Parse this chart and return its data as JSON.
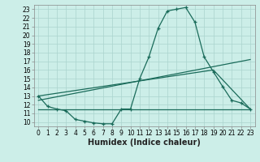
{
  "xlabel": "Humidex (Indice chaleur)",
  "background_color": "#cceee8",
  "grid_color": "#aad4ce",
  "line_color": "#1a6b5a",
  "line1_x": [
    0,
    1,
    2,
    3,
    4,
    5,
    6,
    7,
    8,
    9,
    10,
    11,
    12,
    13,
    14,
    15,
    16,
    17,
    18,
    19,
    20,
    21,
    22,
    23
  ],
  "line1_y": [
    13.0,
    11.8,
    11.5,
    11.3,
    10.3,
    10.1,
    9.9,
    9.8,
    9.8,
    11.5,
    11.5,
    15.0,
    17.5,
    20.8,
    22.8,
    23.0,
    23.2,
    21.5,
    17.5,
    15.8,
    14.1,
    12.5,
    12.2,
    11.5
  ],
  "line2_x": [
    0,
    1,
    2,
    3,
    4,
    5,
    6,
    7,
    8,
    9,
    10,
    11,
    12,
    13,
    14,
    15,
    16,
    17,
    18,
    19,
    20,
    21,
    22,
    23
  ],
  "line2_y": [
    11.5,
    11.5,
    11.5,
    11.5,
    11.5,
    11.5,
    11.5,
    11.5,
    11.5,
    11.5,
    11.5,
    11.5,
    11.5,
    11.5,
    11.5,
    11.5,
    11.5,
    11.5,
    11.5,
    11.5,
    11.5,
    11.5,
    11.5,
    11.5
  ],
  "line3_x": [
    0,
    23
  ],
  "line3_y": [
    12.5,
    17.2
  ],
  "line4_x": [
    0,
    19,
    23
  ],
  "line4_y": [
    13.0,
    16.0,
    11.5
  ],
  "xlim": [
    -0.5,
    23.5
  ],
  "ylim": [
    9.5,
    23.5
  ],
  "yticks": [
    10,
    11,
    12,
    13,
    14,
    15,
    16,
    17,
    18,
    19,
    20,
    21,
    22,
    23
  ],
  "xticks": [
    0,
    1,
    2,
    3,
    4,
    5,
    6,
    7,
    8,
    9,
    10,
    11,
    12,
    13,
    14,
    15,
    16,
    17,
    18,
    19,
    20,
    21,
    22,
    23
  ],
  "tick_fontsize": 5.5,
  "label_fontsize": 7
}
